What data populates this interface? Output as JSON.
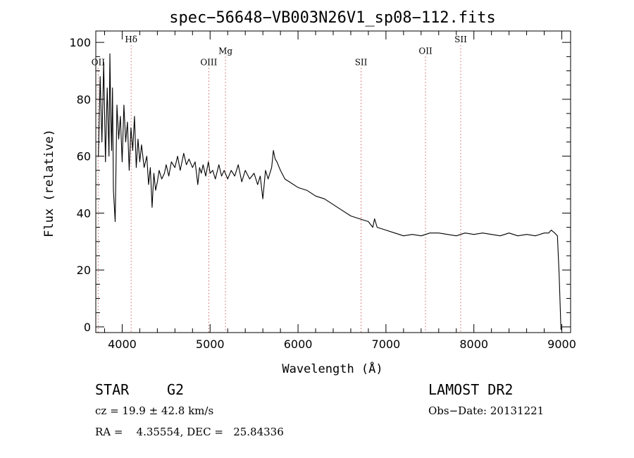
{
  "chart_data": {
    "type": "line",
    "title": "spec−56648−VB003N26V1_sp08−112.fits",
    "xlabel": "Wavelength (Å)",
    "ylabel": "Flux (relative)",
    "xlim": [
      3700,
      9100
    ],
    "ylim": [
      -2,
      104
    ],
    "xticks": [
      4000,
      5000,
      6000,
      7000,
      8000,
      9000
    ],
    "yticks": [
      0,
      20,
      40,
      60,
      80,
      100
    ],
    "grid": false,
    "spectral_lines": [
      {
        "label": "OII",
        "wavelength": 3727,
        "label_flux": 92
      },
      {
        "label": "Hδ",
        "wavelength": 4102,
        "label_flux": 100
      },
      {
        "label": "OIII",
        "wavelength": 4985,
        "label_flux": 92
      },
      {
        "label": "Mg",
        "wavelength": 5175,
        "label_flux": 96
      },
      {
        "label": "SII",
        "wavelength": 6717,
        "label_flux": 92
      },
      {
        "label": "OII",
        "wavelength": 7450,
        "label_flux": 96
      },
      {
        "label": "SII",
        "wavelength": 7850,
        "label_flux": 100
      }
    ],
    "series": [
      {
        "x": [
          3730,
          3750,
          3770,
          3790,
          3810,
          3830,
          3850,
          3860,
          3870,
          3880,
          3890,
          3900,
          3920,
          3940,
          3960,
          3980,
          4000,
          4020,
          4040,
          4060,
          4080,
          4100,
          4120,
          4140,
          4160,
          4180,
          4200,
          4220,
          4250,
          4280,
          4300,
          4320,
          4340,
          4360,
          4380,
          4400,
          4420,
          4450,
          4480,
          4500,
          4530,
          4560,
          4600,
          4630,
          4660,
          4700,
          4730,
          4760,
          4800,
          4830,
          4860,
          4880,
          4900,
          4920,
          4950,
          4980,
          5000,
          5030,
          5060,
          5100,
          5130,
          5160,
          5200,
          5240,
          5280,
          5320,
          5360,
          5400,
          5450,
          5500,
          5540,
          5570,
          5600,
          5630,
          5660,
          5700,
          5720,
          5740,
          5760,
          5800,
          5850,
          5900,
          6000,
          6100,
          6200,
          6300,
          6400,
          6500,
          6600,
          6700,
          6800,
          6850,
          6870,
          6900,
          7000,
          7100,
          7200,
          7300,
          7400,
          7500,
          7600,
          7700,
          7800,
          7900,
          8000,
          8100,
          8200,
          8300,
          8400,
          8500,
          8600,
          8700,
          8800,
          8850,
          8880,
          8920,
          8950,
          8970,
          8990
        ],
        "y": [
          60,
          88,
          65,
          93,
          58,
          84,
          60,
          96,
          75,
          62,
          84,
          48,
          37,
          78,
          66,
          74,
          58,
          78,
          65,
          72,
          55,
          70,
          62,
          74,
          56,
          66,
          58,
          64,
          56,
          60,
          50,
          56,
          42,
          54,
          48,
          51,
          55,
          52,
          54,
          57,
          53,
          58,
          56,
          60,
          55,
          61,
          57,
          59,
          56,
          58,
          50,
          56,
          54,
          57,
          53,
          58,
          54,
          55,
          52,
          57,
          53,
          55,
          52,
          55,
          53,
          57,
          51,
          55,
          52,
          54,
          50,
          53,
          45,
          55,
          52,
          56,
          62,
          59,
          58,
          55,
          52,
          51,
          49,
          48,
          46,
          45,
          43,
          41,
          39,
          38,
          37,
          35,
          38,
          35,
          34,
          33,
          32,
          32.5,
          32,
          33,
          33,
          32.5,
          32,
          33,
          32.5,
          33,
          32.5,
          32,
          33,
          32,
          32.5,
          32,
          33,
          33,
          34,
          33,
          32,
          18,
          -1
        ]
      }
    ]
  },
  "info": {
    "object_class": "STAR",
    "subclass": "G2",
    "survey": "LAMOST DR2",
    "velocity": "cz = 19.9 ± 42.8 km/s",
    "obs_date": "Obs−Date: 20131221",
    "coords": "RA =    4.35554, DEC =   25.84336"
  },
  "colors": {
    "spectrum": "#000000",
    "line_marker": "#d46060",
    "axes": "#000000"
  }
}
